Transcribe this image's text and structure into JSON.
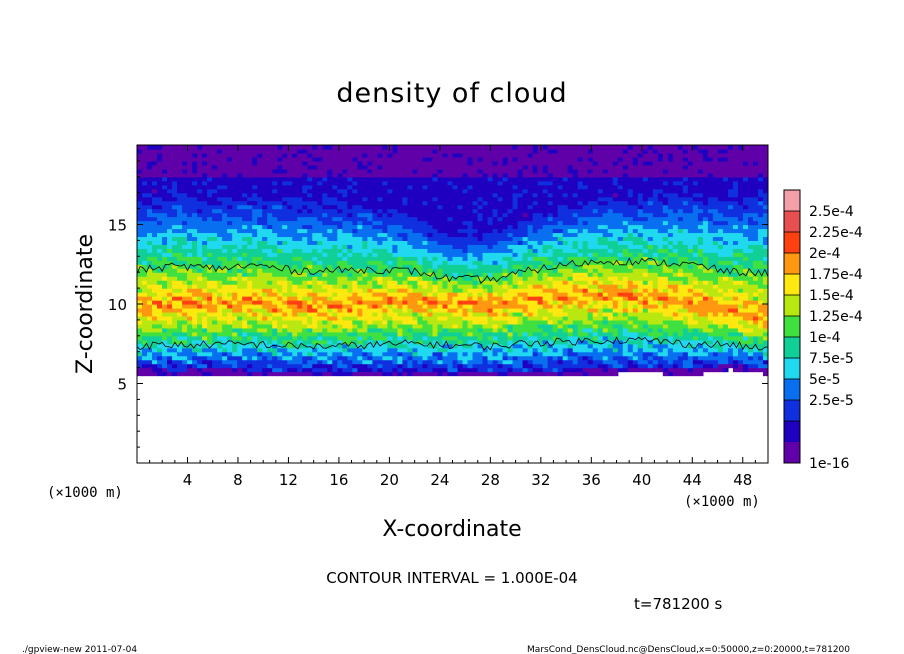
{
  "chart_data": {
    "type": "heatmap",
    "title": "density of cloud",
    "xlabel": "X-coordinate",
    "ylabel": "Z-coordinate",
    "x_unit": "(×1000 m)",
    "x_unit_right": "(×1000 m)",
    "xlim": [
      0,
      50
    ],
    "ylim": [
      0,
      20
    ],
    "xticks": [
      4,
      8,
      12,
      16,
      20,
      24,
      28,
      32,
      36,
      40,
      44,
      48
    ],
    "yticks": [
      5,
      10,
      15
    ],
    "colorbar": {
      "labels": [
        "2.5e-4",
        "2.25e-4",
        "2e-4",
        "1.75e-4",
        "1.5e-4",
        "1.25e-4",
        "1e-4",
        "7.5e-5",
        "5e-5",
        "2.5e-5",
        "1e-16"
      ],
      "colors": [
        "#f4a0a8",
        "#e85050",
        "#ff4010",
        "#ff9810",
        "#ffe810",
        "#b8e810",
        "#40e040",
        "#10d098",
        "#20d8f0",
        "#0870f0",
        "#1030e0",
        "#2000c0",
        "#6000a8"
      ]
    },
    "contour_interval": "CONTOUR INTERVAL = 1.000E-04",
    "time_label": "t=781200 s",
    "cloud_bottom_km": [
      5.6,
      5.5,
      5.6,
      5.5,
      5.5,
      5.5,
      5.5,
      5.5,
      5.4,
      5.4,
      5.5,
      5.5,
      5.6,
      5.7,
      5.5,
      5.9,
      5.6
    ],
    "cloud_top_km": [
      17.0,
      17.3,
      17.0,
      17.2,
      16.8,
      16.8,
      16.6,
      15.8,
      14.5,
      14.8,
      15.8,
      16.6,
      17.0,
      17.2,
      17.4,
      17.2,
      17.6
    ],
    "core_center_km": [
      9.8,
      10.1,
      10.0,
      10.2,
      9.9,
      9.9,
      10.1,
      10.3,
      10.2,
      10.0,
      10.4,
      10.6,
      10.7,
      10.5,
      10.2,
      9.6,
      9.3
    ]
  },
  "footer": {
    "left": "./gpview-new  2011-07-04",
    "right": "MarsCond_DensCloud.nc@DensCloud,x=0:50000,z=0:20000,t=781200"
  }
}
